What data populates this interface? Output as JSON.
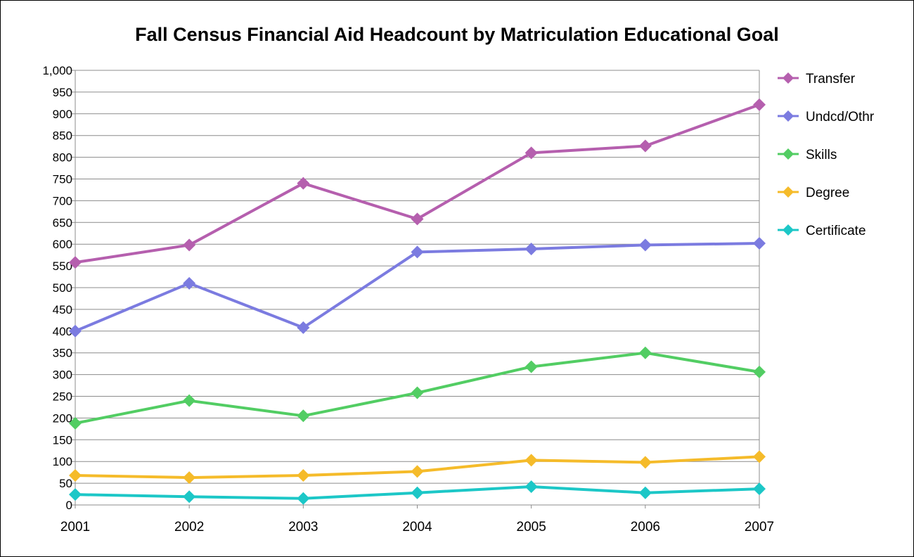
{
  "chart_data": {
    "type": "line",
    "title": "Fall Census Financial Aid Headcount by Matriculation Educational Goal",
    "xlabel": "",
    "ylabel": "",
    "categories": [
      "2001",
      "2002",
      "2003",
      "2004",
      "2005",
      "2006",
      "2007"
    ],
    "ylim": [
      0,
      1000
    ],
    "ytick_step": 50,
    "yticks": [
      "0",
      "50",
      "100",
      "150",
      "200",
      "250",
      "300",
      "350",
      "400",
      "450",
      "500",
      "550",
      "600",
      "650",
      "700",
      "750",
      "800",
      "850",
      "900",
      "950",
      "1,000"
    ],
    "grid": true,
    "legend_position": "right",
    "series": [
      {
        "name": "Transfer",
        "color": "#b55fae",
        "values": [
          558,
          598,
          740,
          658,
          810,
          826,
          921
        ]
      },
      {
        "name": "Undcd/Othr",
        "color": "#7b7be0",
        "values": [
          400,
          510,
          408,
          582,
          589,
          598,
          602
        ]
      },
      {
        "name": "Skills",
        "color": "#52cd63",
        "values": [
          188,
          240,
          205,
          258,
          318,
          350,
          306
        ]
      },
      {
        "name": "Degree",
        "color": "#f5bb2a",
        "values": [
          68,
          63,
          68,
          77,
          103,
          98,
          111
        ]
      },
      {
        "name": "Certificate",
        "color": "#1cc7c7",
        "values": [
          24,
          19,
          15,
          28,
          42,
          28,
          37
        ]
      }
    ]
  }
}
